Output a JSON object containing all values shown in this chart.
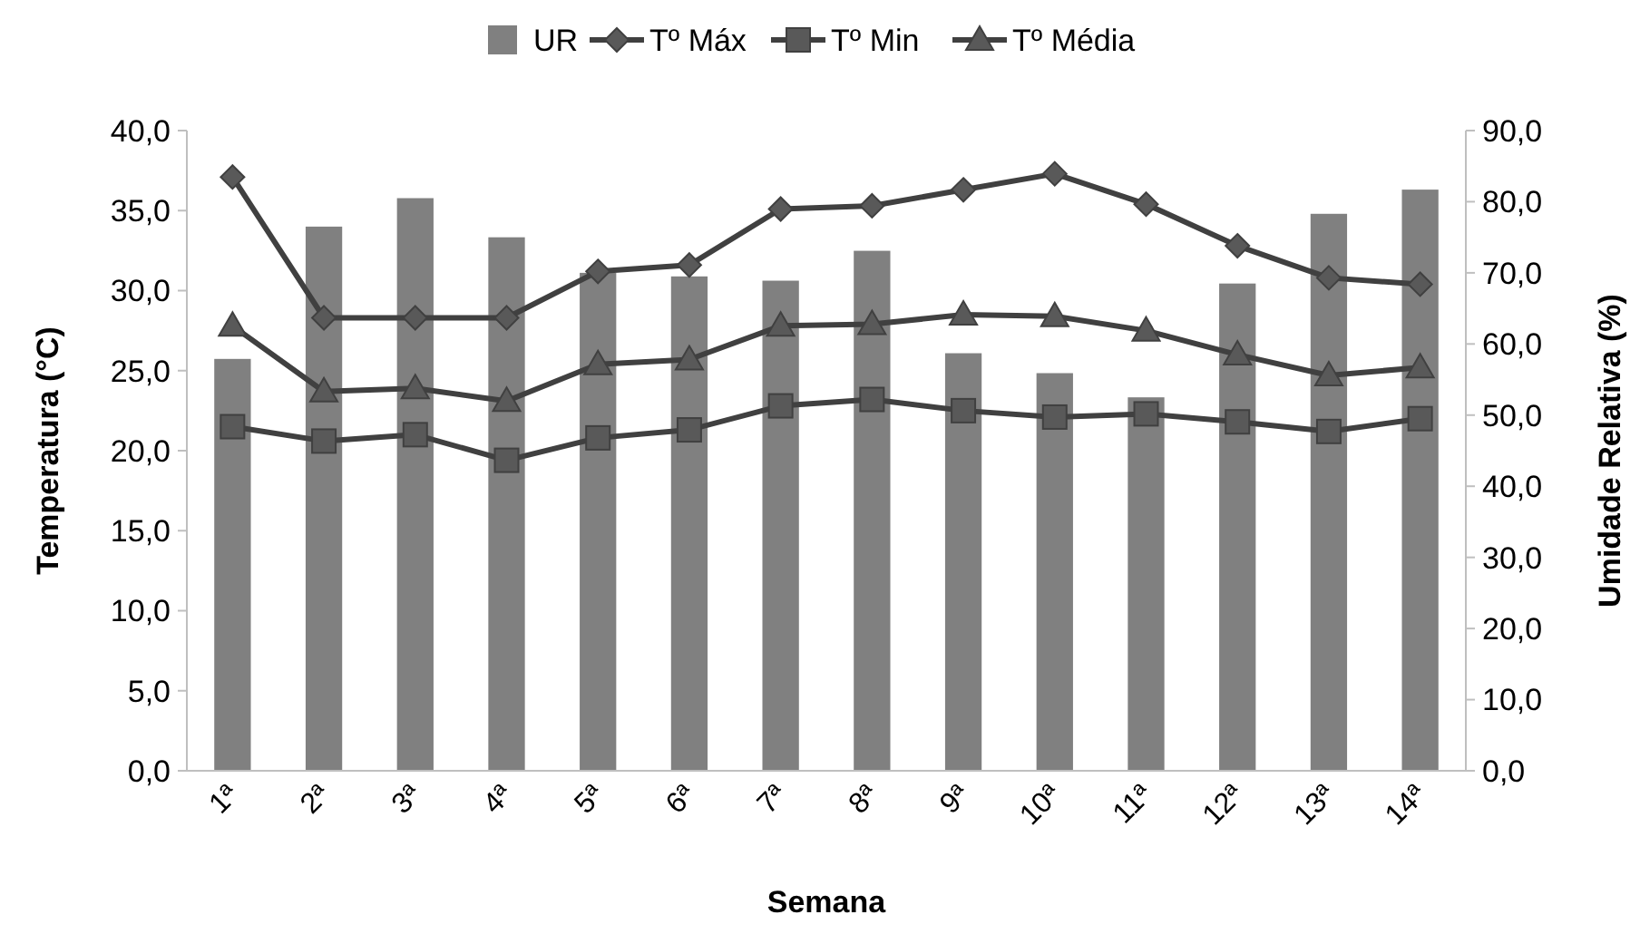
{
  "chart_data": {
    "type": "line",
    "xlabel": "Semana",
    "ylabel": "Temperatura (°C)",
    "y2label": "Umidade Relativa (%)",
    "categories": [
      "1ª",
      "2ª",
      "3ª",
      "4ª",
      "5ª",
      "6ª",
      "7ª",
      "8ª",
      "9ª",
      "10ª",
      "11ª",
      "12ª",
      "13ª",
      "14ª"
    ],
    "series": [
      {
        "name": "UR",
        "type": "bar",
        "axis": "y2",
        "color": "#808080",
        "values": [
          57.9,
          76.5,
          80.5,
          75.0,
          70.0,
          69.5,
          68.9,
          73.1,
          58.7,
          55.9,
          52.5,
          68.5,
          78.3,
          81.7
        ]
      },
      {
        "name": "Tº Máx",
        "marker": "diamond",
        "color": "#404040",
        "values": [
          37.1,
          28.3,
          28.3,
          28.3,
          31.2,
          31.6,
          35.1,
          35.3,
          36.3,
          37.3,
          35.4,
          32.8,
          30.8,
          30.4
        ]
      },
      {
        "name": "Tº Min",
        "marker": "square",
        "color": "#404040",
        "values": [
          21.5,
          20.6,
          21.0,
          19.4,
          20.8,
          21.3,
          22.8,
          23.2,
          22.5,
          22.1,
          22.3,
          21.8,
          21.2,
          22.0
        ]
      },
      {
        "name": "Tº Média",
        "marker": "triangle",
        "color": "#404040",
        "values": [
          27.8,
          23.7,
          23.9,
          23.1,
          25.4,
          25.7,
          27.8,
          27.9,
          28.5,
          28.4,
          27.5,
          26.0,
          24.7,
          25.2
        ]
      }
    ],
    "ylim": [
      0,
      40
    ],
    "yticks": [
      {
        "value": 0,
        "label": "0,0"
      },
      {
        "value": 5,
        "label": "5,0"
      },
      {
        "value": 10,
        "label": "10,0"
      },
      {
        "value": 15,
        "label": "15,0"
      },
      {
        "value": 20,
        "label": "20,0"
      },
      {
        "value": 25,
        "label": "25,0"
      },
      {
        "value": 30,
        "label": "30,0"
      },
      {
        "value": 35,
        "label": "35,0"
      },
      {
        "value": 40,
        "label": "40,0"
      }
    ],
    "y2lim": [
      0,
      90
    ],
    "y2ticks": [
      {
        "value": 0,
        "label": "0,0"
      },
      {
        "value": 10,
        "label": "10,0"
      },
      {
        "value": 20,
        "label": "20,0"
      },
      {
        "value": 30,
        "label": "30,0"
      },
      {
        "value": 40,
        "label": "40,0"
      },
      {
        "value": 50,
        "label": "50,0"
      },
      {
        "value": 60,
        "label": "60,0"
      },
      {
        "value": 70,
        "label": "70,0"
      },
      {
        "value": 80,
        "label": "80,0"
      },
      {
        "value": 90,
        "label": "90,0"
      }
    ],
    "legend": "top",
    "grid": false
  }
}
